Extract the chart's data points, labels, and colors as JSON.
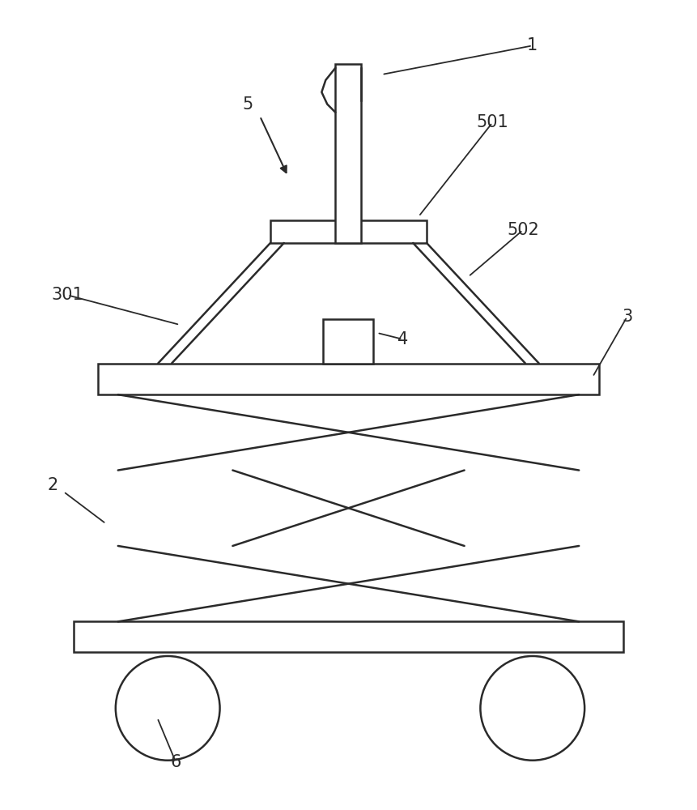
{
  "bg_color": "#ffffff",
  "line_color": "#2a2a2a",
  "lw": 1.6,
  "fig_width": 8.61,
  "fig_height": 10.0,
  "label_fontsize": 15
}
